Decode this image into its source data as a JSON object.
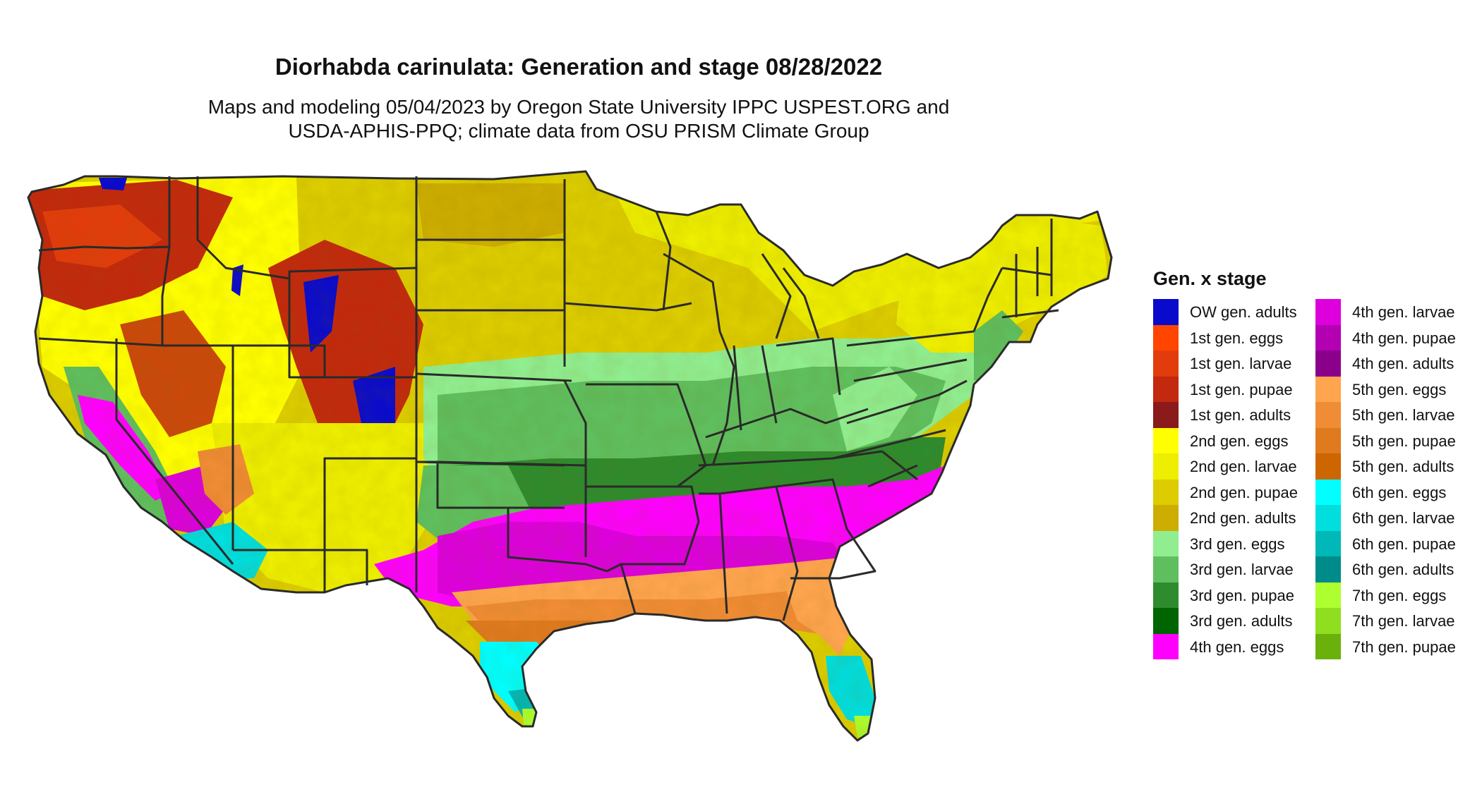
{
  "title": "Diorhabda carinulata: Generation and stage 08/28/2022",
  "subtitle_lines": [
    "Maps and modeling 05/04/2023 by Oregon State University IPPC USPEST.ORG and",
    "USDA-APHIS-PPQ; climate data from OSU PRISM Climate Group"
  ],
  "legend": {
    "title": "Gen. x stage",
    "columns": [
      [
        {
          "label": "OW gen. adults",
          "color": "#0a0acc"
        },
        {
          "label": "1st gen. eggs",
          "color": "#ff4500"
        },
        {
          "label": "1st gen. larvae",
          "color": "#e23c0c"
        },
        {
          "label": "1st gen. pupae",
          "color": "#c2290e"
        },
        {
          "label": "1st gen. adults",
          "color": "#8b1a1a"
        },
        {
          "label": "2nd gen. eggs",
          "color": "#ffff00"
        },
        {
          "label": "2nd gen. larvae",
          "color": "#eeee00"
        },
        {
          "label": "2nd gen. pupae",
          "color": "#dccc00"
        },
        {
          "label": "2nd gen. adults",
          "color": "#cdad00"
        },
        {
          "label": "3rd gen. eggs",
          "color": "#90ee90"
        },
        {
          "label": "3rd gen. larvae",
          "color": "#5fbf5f"
        },
        {
          "label": "3rd gen. pupae",
          "color": "#2e8b2e"
        },
        {
          "label": "3rd gen. adults",
          "color": "#006400"
        },
        {
          "label": "4th gen. eggs",
          "color": "#ff00ff"
        }
      ],
      [
        {
          "label": "4th gen. larvae",
          "color": "#dd00dd"
        },
        {
          "label": "4th gen. pupae",
          "color": "#b300b3"
        },
        {
          "label": "4th gen. adults",
          "color": "#8b008b"
        },
        {
          "label": "5th gen. eggs",
          "color": "#ffa54f"
        },
        {
          "label": "5th gen. larvae",
          "color": "#f08c35"
        },
        {
          "label": "5th gen. pupae",
          "color": "#e07a1f"
        },
        {
          "label": "5th gen. adults",
          "color": "#cd6600"
        },
        {
          "label": "6th gen. eggs",
          "color": "#00ffff"
        },
        {
          "label": "6th gen. larvae",
          "color": "#00dede"
        },
        {
          "label": "6th gen. pupae",
          "color": "#00b8b8"
        },
        {
          "label": "6th gen. adults",
          "color": "#008b8b"
        },
        {
          "label": "7th gen. eggs",
          "color": "#adff2f"
        },
        {
          "label": "7th gen. larvae",
          "color": "#8fde1f"
        },
        {
          "label": "7th gen. pupae",
          "color": "#6ab10c"
        }
      ]
    ]
  }
}
